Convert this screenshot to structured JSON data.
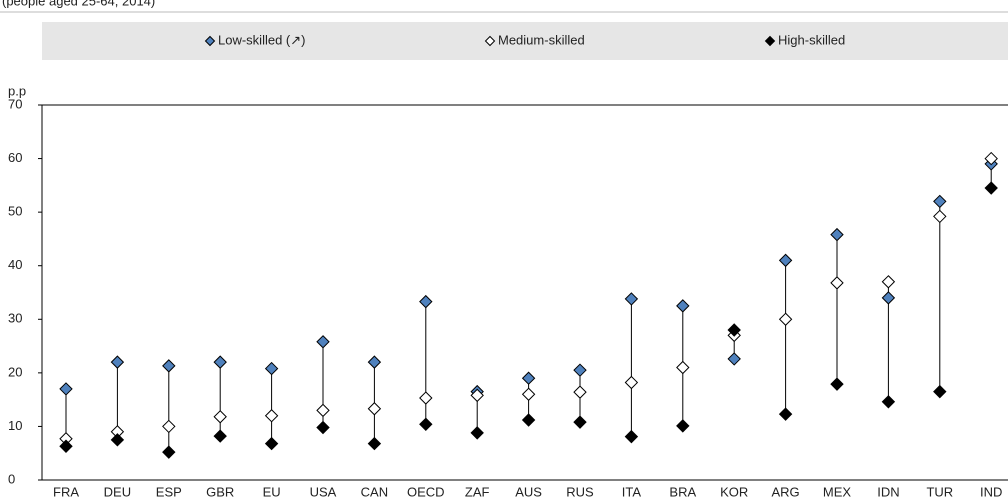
{
  "chart_data": {
    "type": "dot-range",
    "subtitle": "(people aged 25-64, 2014)",
    "y_label": "p.p",
    "categories": [
      "FRA",
      "DEU",
      "ESP",
      "GBR",
      "EU",
      "USA",
      "CAN",
      "OECD",
      "ZAF",
      "AUS",
      "RUS",
      "ITA",
      "BRA",
      "KOR",
      "ARG",
      "MEX",
      "IDN",
      "TUR",
      "IND"
    ],
    "series": [
      {
        "name": "Low-skilled (↗)",
        "color": "#4f81bd",
        "values": [
          17,
          22,
          21.3,
          22,
          20.8,
          25.8,
          22,
          33.3,
          16.5,
          19,
          20.5,
          33.8,
          32.5,
          22.6,
          41,
          45.8,
          34,
          52,
          59
        ]
      },
      {
        "name": "Medium-skilled",
        "color": "#ffffff",
        "values": [
          7.7,
          9,
          10,
          11.8,
          12,
          13,
          13.3,
          15.3,
          15.8,
          16,
          16.4,
          18.2,
          21,
          27,
          30,
          36.8,
          37,
          49.2,
          60
        ]
      },
      {
        "name": "High-skilled",
        "color": "#000000",
        "values": [
          6.3,
          7.5,
          5.2,
          8.2,
          6.8,
          9.8,
          6.8,
          10.4,
          8.8,
          11.2,
          10.8,
          8.1,
          10.1,
          28,
          12.3,
          17.9,
          14.6,
          16.5,
          54.5
        ]
      }
    ],
    "ylim": [
      0,
      70
    ],
    "yticks": [
      0,
      10,
      20,
      30,
      40,
      50,
      60,
      70
    ],
    "grid": false
  }
}
